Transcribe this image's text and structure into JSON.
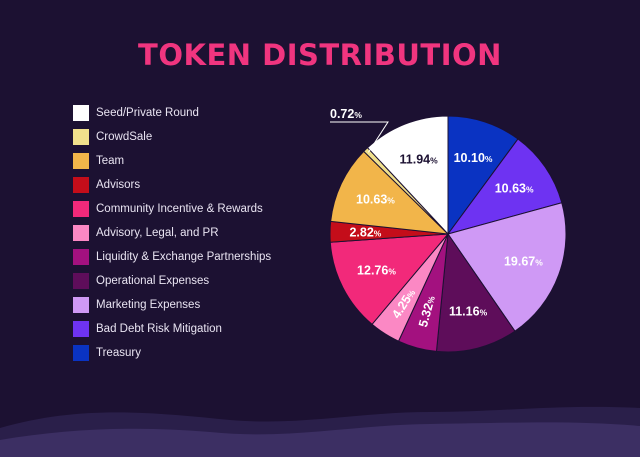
{
  "title": "TOKEN DISTRIBUTION",
  "colors": {
    "background": "#1c1132",
    "title": "#f0357f",
    "legend_text": "#e9e4f2",
    "label_light": "#ffffff",
    "label_dark": "#1c1132",
    "wave": "#3c2f63"
  },
  "chart_data": {
    "type": "pie",
    "title": "TOKEN DISTRIBUTION",
    "value_suffix": "%",
    "legend_position": "left",
    "start_clockwise_from": "top",
    "slices": [
      {
        "label": "Treasury",
        "value": 10.1,
        "display": "10.10",
        "color": "#0a33c2"
      },
      {
        "label": "Bad Debt Risk Mitigation",
        "value": 10.63,
        "display": "10.63",
        "color": "#6e33f2"
      },
      {
        "label": "Marketing Expenses",
        "value": 19.67,
        "display": "19.67",
        "color": "#cf99f5"
      },
      {
        "label": "Operational Expenses",
        "value": 11.16,
        "display": "11.16",
        "color": "#5e0d5a"
      },
      {
        "label": "Liquidity & Exchange Partnerships",
        "value": 5.32,
        "display": "5.32",
        "color": "#a3117f"
      },
      {
        "label": "Advisory, Legal, and PR",
        "value": 4.25,
        "display": "4.25",
        "color": "#fb88c4"
      },
      {
        "label": "Community Incentive & Rewards",
        "value": 12.76,
        "display": "12.76",
        "color": "#f2297a"
      },
      {
        "label": "Advisors",
        "value": 2.82,
        "display": "2.82",
        "color": "#c40d1a"
      },
      {
        "label": "Team",
        "value": 10.63,
        "display": "10.63",
        "color": "#f2b54a"
      },
      {
        "label": "CrowdSale",
        "value": 0.72,
        "display": "0.72",
        "color": "#f0e08c"
      },
      {
        "label": "Seed/Private Round",
        "value": 11.94,
        "display": "11.94",
        "color": "#ffffff"
      }
    ],
    "legend_order": [
      "Seed/Private Round",
      "CrowdSale",
      "Team",
      "Advisors",
      "Community Incentive & Rewards",
      "Advisory, Legal, and PR",
      "Liquidity & Exchange Partnerships",
      "Operational Expenses",
      "Marketing Expenses",
      "Bad Debt Risk Mitigation",
      "Treasury"
    ]
  }
}
